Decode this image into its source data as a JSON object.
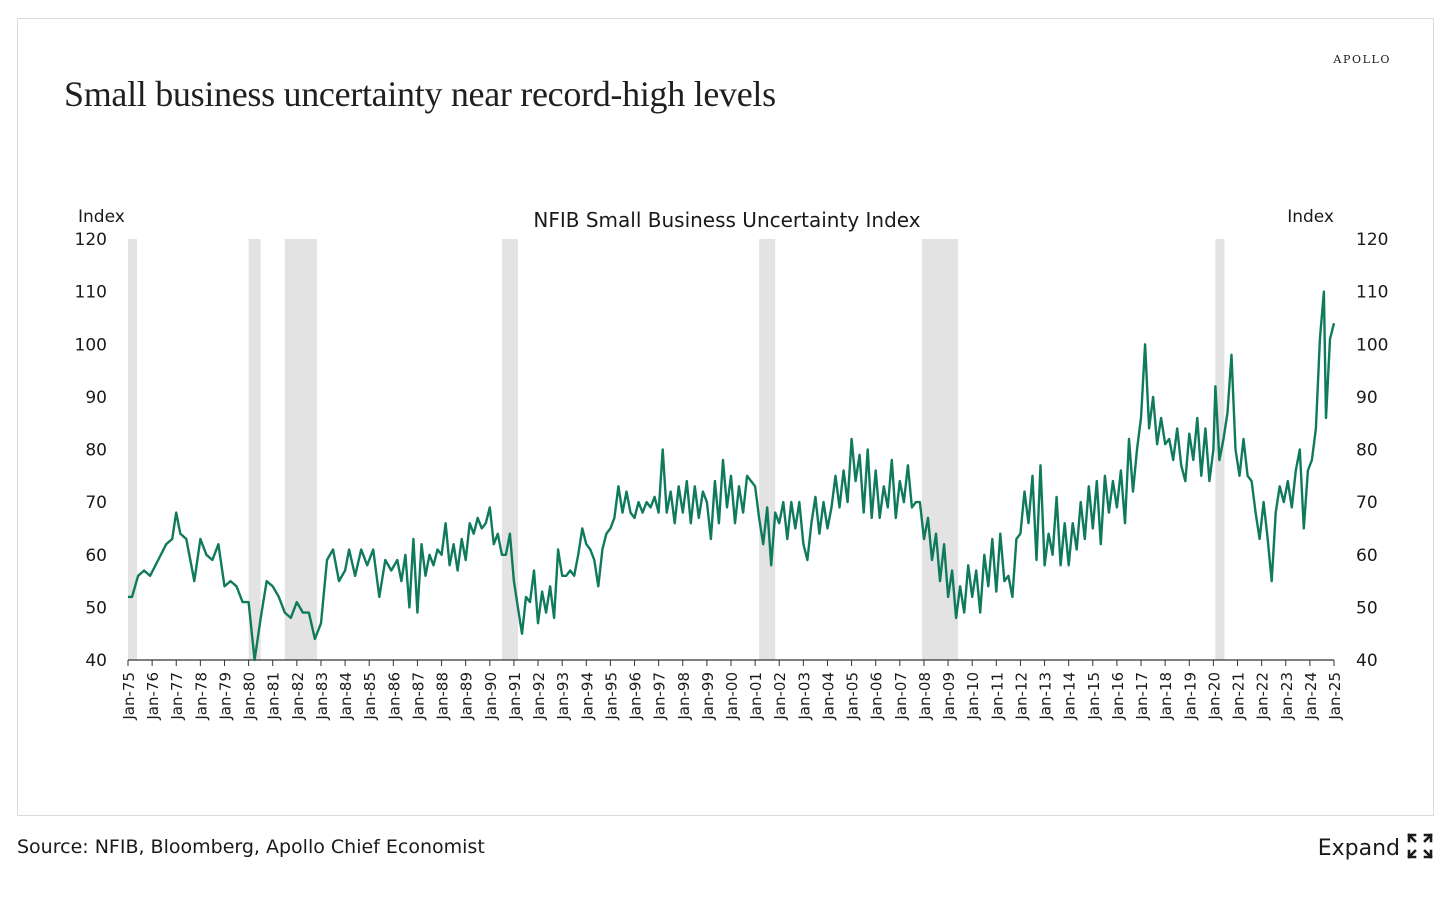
{
  "brand": "APOLLO",
  "title": "Small business uncertainty near record-high levels",
  "source": "Source: NFIB, Bloomberg, Apollo Chief Economist",
  "expand_label": "Expand",
  "colors": {
    "line": "#0f7a5c",
    "recession": "#e3e3e3",
    "text": "#1a1a1a"
  },
  "icons": {
    "expand": "expand-arrows-icon"
  },
  "chart_data": {
    "type": "line",
    "title": "NFIB Small Business Uncertainty Index",
    "ylabel_left": "Index",
    "ylabel_right": "Index",
    "ylim": [
      40,
      120
    ],
    "yticks": [
      40,
      50,
      60,
      70,
      80,
      90,
      100,
      110,
      120
    ],
    "xticks": [
      "Jan-75",
      "Jan-76",
      "Jan-77",
      "Jan-78",
      "Jan-79",
      "Jan-80",
      "Jan-81",
      "Jan-82",
      "Jan-83",
      "Jan-84",
      "Jan-85",
      "Jan-86",
      "Jan-87",
      "Jan-88",
      "Jan-89",
      "Jan-90",
      "Jan-91",
      "Jan-92",
      "Jan-93",
      "Jan-94",
      "Jan-95",
      "Jan-96",
      "Jan-97",
      "Jan-98",
      "Jan-99",
      "Jan-00",
      "Jan-01",
      "Jan-02",
      "Jan-03",
      "Jan-04",
      "Jan-05",
      "Jan-06",
      "Jan-07",
      "Jan-08",
      "Jan-09",
      "Jan-10",
      "Jan-11",
      "Jan-12",
      "Jan-13",
      "Jan-14",
      "Jan-15",
      "Jan-16",
      "Jan-17",
      "Jan-18",
      "Jan-19",
      "Jan-20",
      "Jan-21",
      "Jan-22",
      "Jan-23",
      "Jan-24",
      "Jan-25"
    ],
    "recessions": [
      [
        "Jan-75",
        "Mar-75"
      ],
      [
        "Jan-80",
        "Jul-80"
      ],
      [
        "Jul-81",
        "Nov-82"
      ],
      [
        "Jul-90",
        "Mar-91"
      ],
      [
        "Mar-01",
        "Nov-01"
      ],
      [
        "Dec-07",
        "Jun-09"
      ],
      [
        "Feb-20",
        "Apr-20"
      ]
    ],
    "grid": false,
    "legend": "none",
    "series": [
      {
        "values": [
          [
            "Jan-75",
            52
          ],
          [
            "Mar-75",
            52
          ],
          [
            "Jun-75",
            56
          ],
          [
            "Sep-75",
            57
          ],
          [
            "Dec-75",
            56
          ],
          [
            "Apr-76",
            59
          ],
          [
            "Aug-76",
            62
          ],
          [
            "Nov-76",
            63
          ],
          [
            "Jan-77",
            68
          ],
          [
            "Mar-77",
            64
          ],
          [
            "Jun-77",
            63
          ],
          [
            "Oct-77",
            55
          ],
          [
            "Jan-78",
            63
          ],
          [
            "Apr-78",
            60
          ],
          [
            "Jul-78",
            59
          ],
          [
            "Oct-78",
            62
          ],
          [
            "Jan-79",
            54
          ],
          [
            "Apr-79",
            55
          ],
          [
            "Jul-79",
            54
          ],
          [
            "Oct-79",
            51
          ],
          [
            "Jan-80",
            51
          ],
          [
            "Apr-80",
            40
          ],
          [
            "Jul-80",
            48
          ],
          [
            "Oct-80",
            55
          ],
          [
            "Jan-81",
            54
          ],
          [
            "Apr-81",
            52
          ],
          [
            "Jul-81",
            49
          ],
          [
            "Oct-81",
            48
          ],
          [
            "Jan-82",
            51
          ],
          [
            "Apr-82",
            49
          ],
          [
            "Jul-82",
            49
          ],
          [
            "Oct-82",
            44
          ],
          [
            "Jan-83",
            47
          ],
          [
            "Apr-83",
            59
          ],
          [
            "Jul-83",
            61
          ],
          [
            "Oct-83",
            55
          ],
          [
            "Jan-84",
            57
          ],
          [
            "Mar-84",
            61
          ],
          [
            "Jun-84",
            56
          ],
          [
            "Sep-84",
            61
          ],
          [
            "Dec-84",
            58
          ],
          [
            "Mar-85",
            61
          ],
          [
            "Jun-85",
            52
          ],
          [
            "Sep-85",
            59
          ],
          [
            "Dec-85",
            57
          ],
          [
            "Mar-86",
            59
          ],
          [
            "May-86",
            55
          ],
          [
            "Jul-86",
            60
          ],
          [
            "Sep-86",
            50
          ],
          [
            "Nov-86",
            63
          ],
          [
            "Jan-87",
            49
          ],
          [
            "Mar-87",
            62
          ],
          [
            "May-87",
            56
          ],
          [
            "Jul-87",
            60
          ],
          [
            "Sep-87",
            58
          ],
          [
            "Nov-87",
            61
          ],
          [
            "Jan-88",
            60
          ],
          [
            "Mar-88",
            66
          ],
          [
            "May-88",
            58
          ],
          [
            "Jul-88",
            62
          ],
          [
            "Sep-88",
            57
          ],
          [
            "Nov-88",
            63
          ],
          [
            "Jan-89",
            59
          ],
          [
            "Mar-89",
            66
          ],
          [
            "May-89",
            64
          ],
          [
            "Jul-89",
            67
          ],
          [
            "Sep-89",
            65
          ],
          [
            "Nov-89",
            66
          ],
          [
            "Jan-90",
            69
          ],
          [
            "Mar-90",
            62
          ],
          [
            "May-90",
            64
          ],
          [
            "Jul-90",
            60
          ],
          [
            "Sep-90",
            60
          ],
          [
            "Nov-90",
            64
          ],
          [
            "Jan-91",
            55
          ],
          [
            "Mar-91",
            50
          ],
          [
            "May-91",
            45
          ],
          [
            "Jul-91",
            52
          ],
          [
            "Sep-91",
            51
          ],
          [
            "Nov-91",
            57
          ],
          [
            "Jan-92",
            47
          ],
          [
            "Mar-92",
            53
          ],
          [
            "May-92",
            49
          ],
          [
            "Jul-92",
            54
          ],
          [
            "Sep-92",
            48
          ],
          [
            "Nov-92",
            61
          ],
          [
            "Jan-93",
            56
          ],
          [
            "Mar-93",
            56
          ],
          [
            "May-93",
            57
          ],
          [
            "Jul-93",
            56
          ],
          [
            "Sep-93",
            60
          ],
          [
            "Nov-93",
            65
          ],
          [
            "Jan-94",
            62
          ],
          [
            "Mar-94",
            61
          ],
          [
            "May-94",
            59
          ],
          [
            "Jul-94",
            54
          ],
          [
            "Sep-94",
            61
          ],
          [
            "Nov-94",
            64
          ],
          [
            "Jan-95",
            65
          ],
          [
            "Mar-95",
            67
          ],
          [
            "May-95",
            73
          ],
          [
            "Jul-95",
            68
          ],
          [
            "Sep-95",
            72
          ],
          [
            "Nov-95",
            68
          ],
          [
            "Jan-96",
            67
          ],
          [
            "Mar-96",
            70
          ],
          [
            "May-96",
            68
          ],
          [
            "Jul-96",
            70
          ],
          [
            "Sep-96",
            69
          ],
          [
            "Nov-96",
            71
          ],
          [
            "Jan-97",
            68
          ],
          [
            "Mar-97",
            80
          ],
          [
            "May-97",
            68
          ],
          [
            "Jul-97",
            72
          ],
          [
            "Sep-97",
            66
          ],
          [
            "Nov-97",
            73
          ],
          [
            "Jan-98",
            68
          ],
          [
            "Mar-98",
            74
          ],
          [
            "May-98",
            66
          ],
          [
            "Jul-98",
            73
          ],
          [
            "Sep-98",
            67
          ],
          [
            "Nov-98",
            72
          ],
          [
            "Jan-99",
            70
          ],
          [
            "Mar-99",
            63
          ],
          [
            "May-99",
            74
          ],
          [
            "Jul-99",
            66
          ],
          [
            "Sep-99",
            78
          ],
          [
            "Nov-99",
            69
          ],
          [
            "Jan-00",
            75
          ],
          [
            "Mar-00",
            66
          ],
          [
            "May-00",
            73
          ],
          [
            "Jul-00",
            68
          ],
          [
            "Sep-00",
            75
          ],
          [
            "Nov-00",
            74
          ],
          [
            "Jan-01",
            73
          ],
          [
            "Mar-01",
            67
          ],
          [
            "May-01",
            62
          ],
          [
            "Jul-01",
            69
          ],
          [
            "Sep-01",
            58
          ],
          [
            "Nov-01",
            68
          ],
          [
            "Jan-02",
            66
          ],
          [
            "Mar-02",
            70
          ],
          [
            "May-02",
            63
          ],
          [
            "Jul-02",
            70
          ],
          [
            "Sep-02",
            65
          ],
          [
            "Nov-02",
            70
          ],
          [
            "Jan-03",
            62
          ],
          [
            "Mar-03",
            59
          ],
          [
            "May-03",
            66
          ],
          [
            "Jul-03",
            71
          ],
          [
            "Sep-03",
            64
          ],
          [
            "Nov-03",
            70
          ],
          [
            "Jan-04",
            65
          ],
          [
            "Mar-04",
            69
          ],
          [
            "May-04",
            75
          ],
          [
            "Jul-04",
            69
          ],
          [
            "Sep-04",
            76
          ],
          [
            "Nov-04",
            70
          ],
          [
            "Jan-05",
            82
          ],
          [
            "Mar-05",
            74
          ],
          [
            "May-05",
            79
          ],
          [
            "Jul-05",
            68
          ],
          [
            "Sep-05",
            80
          ],
          [
            "Nov-05",
            67
          ],
          [
            "Jan-06",
            76
          ],
          [
            "Mar-06",
            67
          ],
          [
            "May-06",
            73
          ],
          [
            "Jul-06",
            69
          ],
          [
            "Sep-06",
            78
          ],
          [
            "Nov-06",
            67
          ],
          [
            "Jan-07",
            74
          ],
          [
            "Mar-07",
            70
          ],
          [
            "May-07",
            77
          ],
          [
            "Jul-07",
            69
          ],
          [
            "Sep-07",
            70
          ],
          [
            "Nov-07",
            70
          ],
          [
            "Jan-08",
            63
          ],
          [
            "Mar-08",
            67
          ],
          [
            "May-08",
            59
          ],
          [
            "Jul-08",
            64
          ],
          [
            "Sep-08",
            55
          ],
          [
            "Nov-08",
            62
          ],
          [
            "Jan-09",
            52
          ],
          [
            "Mar-09",
            57
          ],
          [
            "May-09",
            48
          ],
          [
            "Jul-09",
            54
          ],
          [
            "Sep-09",
            49
          ],
          [
            "Nov-09",
            58
          ],
          [
            "Jan-10",
            52
          ],
          [
            "Mar-10",
            57
          ],
          [
            "May-10",
            49
          ],
          [
            "Jul-10",
            60
          ],
          [
            "Sep-10",
            54
          ],
          [
            "Nov-10",
            63
          ],
          [
            "Jan-11",
            53
          ],
          [
            "Mar-11",
            64
          ],
          [
            "May-11",
            55
          ],
          [
            "Jul-11",
            56
          ],
          [
            "Sep-11",
            52
          ],
          [
            "Nov-11",
            63
          ],
          [
            "Jan-12",
            64
          ],
          [
            "Mar-12",
            72
          ],
          [
            "May-12",
            66
          ],
          [
            "Jul-12",
            75
          ],
          [
            "Sep-12",
            59
          ],
          [
            "Nov-12",
            77
          ],
          [
            "Jan-13",
            58
          ],
          [
            "Mar-13",
            64
          ],
          [
            "May-13",
            60
          ],
          [
            "Jul-13",
            71
          ],
          [
            "Sep-13",
            58
          ],
          [
            "Nov-13",
            66
          ],
          [
            "Jan-14",
            58
          ],
          [
            "Mar-14",
            66
          ],
          [
            "May-14",
            61
          ],
          [
            "Jul-14",
            70
          ],
          [
            "Sep-14",
            63
          ],
          [
            "Nov-14",
            73
          ],
          [
            "Jan-15",
            65
          ],
          [
            "Mar-15",
            74
          ],
          [
            "May-15",
            62
          ],
          [
            "Jul-15",
            75
          ],
          [
            "Sep-15",
            68
          ],
          [
            "Nov-15",
            74
          ],
          [
            "Jan-16",
            69
          ],
          [
            "Mar-16",
            76
          ],
          [
            "May-16",
            66
          ],
          [
            "Jul-16",
            82
          ],
          [
            "Sep-16",
            72
          ],
          [
            "Nov-16",
            80
          ],
          [
            "Jan-17",
            86
          ],
          [
            "Mar-17",
            100
          ],
          [
            "May-17",
            84
          ],
          [
            "Jul-17",
            90
          ],
          [
            "Sep-17",
            81
          ],
          [
            "Nov-17",
            86
          ],
          [
            "Jan-18",
            81
          ],
          [
            "Mar-18",
            82
          ],
          [
            "May-18",
            78
          ],
          [
            "Jul-18",
            84
          ],
          [
            "Sep-18",
            77
          ],
          [
            "Nov-18",
            74
          ],
          [
            "Jan-19",
            83
          ],
          [
            "Mar-19",
            78
          ],
          [
            "May-19",
            86
          ],
          [
            "Jul-19",
            75
          ],
          [
            "Sep-19",
            84
          ],
          [
            "Nov-19",
            74
          ],
          [
            "Jan-20",
            80
          ],
          [
            "Feb-20",
            92
          ],
          [
            "Apr-20",
            78
          ],
          [
            "Jun-20",
            82
          ],
          [
            "Aug-20",
            87
          ],
          [
            "Oct-20",
            98
          ],
          [
            "Dec-20",
            80
          ],
          [
            "Feb-21",
            75
          ],
          [
            "Apr-21",
            82
          ],
          [
            "Jun-21",
            75
          ],
          [
            "Aug-21",
            74
          ],
          [
            "Oct-21",
            68
          ],
          [
            "Dec-21",
            63
          ],
          [
            "Feb-22",
            70
          ],
          [
            "Apr-22",
            63
          ],
          [
            "Jun-22",
            55
          ],
          [
            "Aug-22",
            68
          ],
          [
            "Oct-22",
            73
          ],
          [
            "Dec-22",
            70
          ],
          [
            "Feb-23",
            74
          ],
          [
            "Apr-23",
            69
          ],
          [
            "Jun-23",
            76
          ],
          [
            "Aug-23",
            80
          ],
          [
            "Oct-23",
            65
          ],
          [
            "Dec-23",
            76
          ],
          [
            "Feb-24",
            78
          ],
          [
            "Apr-24",
            84
          ],
          [
            "Jun-24",
            101
          ],
          [
            "Aug-24",
            110
          ],
          [
            "Sep-24",
            86
          ],
          [
            "Nov-24",
            101
          ],
          [
            "Jan-25",
            104
          ]
        ]
      }
    ]
  }
}
